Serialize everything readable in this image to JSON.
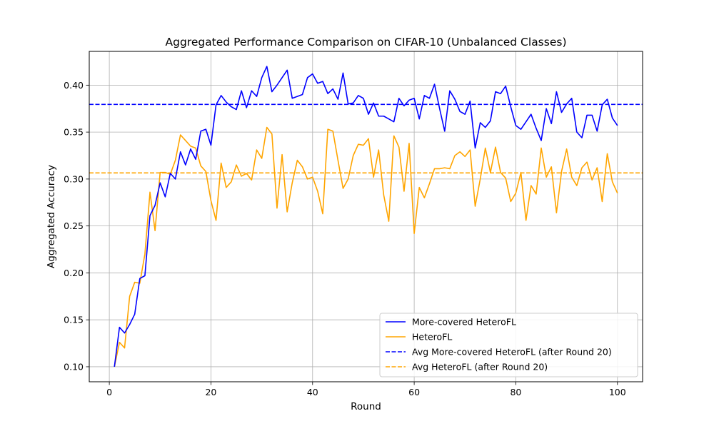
{
  "chart_data": {
    "type": "line",
    "title": "Aggregated Performance Comparison on CIFAR-10 (Unbalanced Classes)",
    "xlabel": "Round",
    "ylabel": "Aggregated Accuracy",
    "xlim": [
      -3.95,
      104.95
    ],
    "ylim": [
      0.084,
      0.436
    ],
    "xticks": [
      0,
      20,
      40,
      60,
      80,
      100
    ],
    "yticks": [
      0.1,
      0.15,
      0.2,
      0.25,
      0.3,
      0.35,
      0.4
    ],
    "ytick_labels": [
      "0.10",
      "0.15",
      "0.20",
      "0.25",
      "0.30",
      "0.35",
      "0.40"
    ],
    "grid": true,
    "legend_position": "lower-right",
    "x": [
      1,
      2,
      3,
      4,
      5,
      6,
      7,
      8,
      9,
      10,
      11,
      12,
      13,
      14,
      15,
      16,
      17,
      18,
      19,
      20,
      21,
      22,
      23,
      24,
      25,
      26,
      27,
      28,
      29,
      30,
      31,
      32,
      33,
      34,
      35,
      36,
      37,
      38,
      39,
      40,
      41,
      42,
      43,
      44,
      45,
      46,
      47,
      48,
      49,
      50,
      51,
      52,
      53,
      54,
      55,
      56,
      57,
      58,
      59,
      60,
      61,
      62,
      63,
      64,
      65,
      66,
      67,
      68,
      69,
      70,
      71,
      72,
      73,
      74,
      75,
      76,
      77,
      78,
      79,
      80,
      81,
      82,
      83,
      84,
      85,
      86,
      87,
      88,
      89,
      90,
      91,
      92,
      93,
      94,
      95,
      96,
      97,
      98,
      99,
      100
    ],
    "series": [
      {
        "name": "More-covered HeteroFL",
        "color": "#0000ff",
        "style": "solid",
        "values": [
          0.1,
          0.142,
          0.136,
          0.145,
          0.156,
          0.194,
          0.197,
          0.261,
          0.272,
          0.296,
          0.281,
          0.306,
          0.3,
          0.329,
          0.315,
          0.332,
          0.321,
          0.351,
          0.353,
          0.336,
          0.379,
          0.389,
          0.382,
          0.377,
          0.374,
          0.394,
          0.376,
          0.394,
          0.388,
          0.408,
          0.42,
          0.393,
          0.4,
          0.408,
          0.416,
          0.386,
          0.388,
          0.39,
          0.408,
          0.412,
          0.402,
          0.404,
          0.391,
          0.396,
          0.385,
          0.413,
          0.38,
          0.381,
          0.389,
          0.386,
          0.369,
          0.381,
          0.367,
          0.367,
          0.364,
          0.361,
          0.386,
          0.378,
          0.384,
          0.386,
          0.364,
          0.389,
          0.386,
          0.401,
          0.375,
          0.351,
          0.394,
          0.385,
          0.372,
          0.369,
          0.383,
          0.333,
          0.36,
          0.355,
          0.362,
          0.393,
          0.391,
          0.399,
          0.377,
          0.357,
          0.353,
          0.361,
          0.369,
          0.354,
          0.341,
          0.375,
          0.359,
          0.393,
          0.371,
          0.38,
          0.386,
          0.35,
          0.344,
          0.368,
          0.368,
          0.351,
          0.379,
          0.385,
          0.365,
          0.357
        ]
      },
      {
        "name": "HeteroFL",
        "color": "#ffa500",
        "style": "solid",
        "values": [
          0.1,
          0.126,
          0.12,
          0.175,
          0.19,
          0.189,
          0.22,
          0.286,
          0.245,
          0.307,
          0.307,
          0.305,
          0.32,
          0.347,
          0.341,
          0.335,
          0.333,
          0.314,
          0.308,
          0.277,
          0.256,
          0.317,
          0.291,
          0.297,
          0.315,
          0.303,
          0.306,
          0.299,
          0.331,
          0.322,
          0.355,
          0.348,
          0.269,
          0.326,
          0.265,
          0.296,
          0.32,
          0.313,
          0.3,
          0.302,
          0.287,
          0.263,
          0.353,
          0.351,
          0.32,
          0.29,
          0.3,
          0.325,
          0.337,
          0.336,
          0.343,
          0.302,
          0.331,
          0.283,
          0.255,
          0.346,
          0.334,
          0.287,
          0.338,
          0.242,
          0.291,
          0.28,
          0.295,
          0.311,
          0.311,
          0.312,
          0.311,
          0.325,
          0.329,
          0.324,
          0.331,
          0.271,
          0.3,
          0.333,
          0.307,
          0.334,
          0.307,
          0.301,
          0.276,
          0.285,
          0.307,
          0.256,
          0.293,
          0.284,
          0.333,
          0.302,
          0.313,
          0.264,
          0.308,
          0.332,
          0.302,
          0.293,
          0.312,
          0.318,
          0.299,
          0.312,
          0.276,
          0.327,
          0.297,
          0.285
        ]
      }
    ],
    "hlines": [
      {
        "name": "Avg More-covered HeteroFL (after Round 20)",
        "value": 0.3795,
        "color": "#0000ff",
        "style": "dashed"
      },
      {
        "name": "Avg HeteroFL (after Round 20)",
        "value": 0.3065,
        "color": "#ffa500",
        "style": "dashed"
      }
    ]
  }
}
